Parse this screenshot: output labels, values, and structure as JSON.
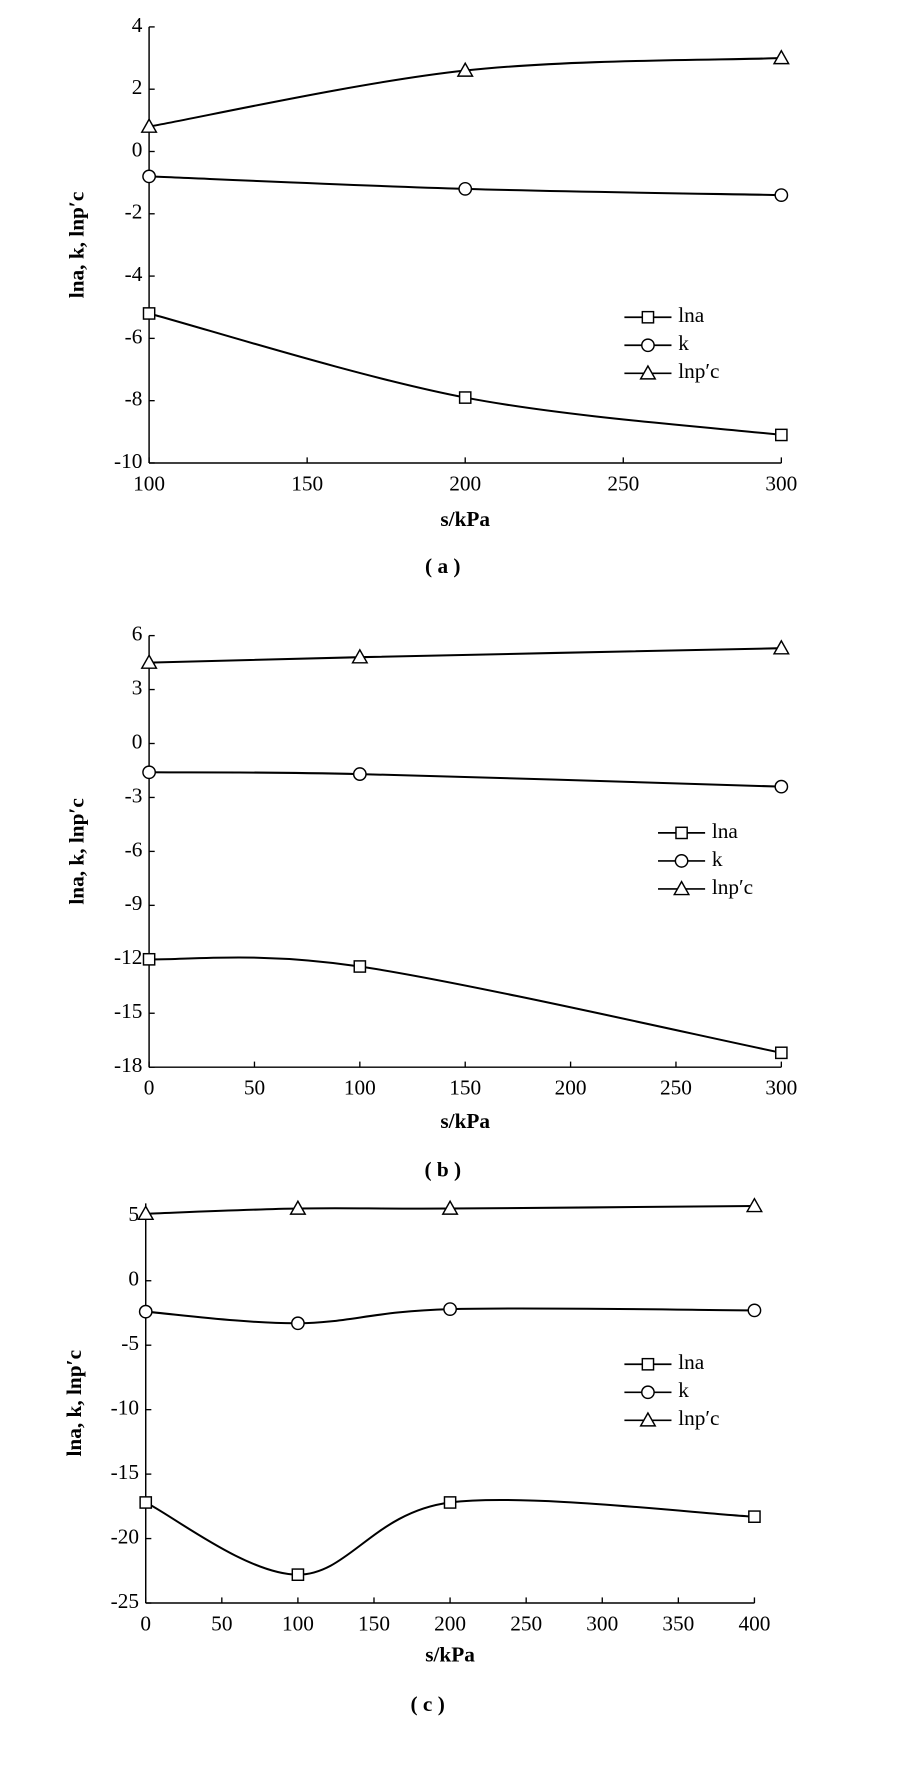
{
  "chart_data": [
    {
      "type": "line",
      "x_label": "s/kPa",
      "y_label": "lna, k, lnp′c",
      "sublabel": "( a )",
      "x": [
        100,
        200,
        300
      ],
      "xlim": [
        100,
        300
      ],
      "xticks": [
        100,
        150,
        200,
        250,
        300
      ],
      "ylim": [
        -10,
        4
      ],
      "yticks": [
        -10,
        -8,
        -6,
        -4,
        -2,
        0,
        2,
        4
      ],
      "smooth": true,
      "series": [
        {
          "name": "lna",
          "color": "#000000",
          "marker": "square",
          "values": [
            -5.2,
            -7.9,
            -9.1
          ]
        },
        {
          "name": "k",
          "color": "#000000",
          "marker": "circle",
          "values": [
            -0.8,
            -1.2,
            -1.4
          ]
        },
        {
          "name": "lnp′c",
          "color": "#000000",
          "marker": "triangle",
          "values": [
            0.8,
            2.6,
            3.0
          ]
        }
      ]
    },
    {
      "type": "line",
      "x_label": "s/kPa",
      "y_label": "lna, k, lnp′c",
      "sublabel": "( b )",
      "x": [
        0,
        100,
        300
      ],
      "xlim": [
        0,
        300
      ],
      "xticks": [
        0,
        50,
        100,
        150,
        200,
        250,
        300
      ],
      "ylim": [
        -18,
        6
      ],
      "yticks": [
        -18,
        -15,
        -12,
        -9,
        -6,
        -3,
        0,
        3,
        6
      ],
      "smooth": true,
      "series": [
        {
          "name": "lna",
          "color": "#000000",
          "marker": "square",
          "values": [
            -12.0,
            -12.4,
            -17.2
          ]
        },
        {
          "name": "k",
          "color": "#000000",
          "marker": "circle",
          "values": [
            -1.6,
            -1.7,
            -2.4
          ]
        },
        {
          "name": "lnp′c",
          "color": "#000000",
          "marker": "triangle",
          "values": [
            4.5,
            4.8,
            5.3
          ]
        }
      ]
    },
    {
      "type": "line",
      "x_label": "s/kPa",
      "y_label": "lna, k, lnp′c",
      "sublabel": "( c )",
      "x": [
        0,
        100,
        200,
        400
      ],
      "xlim": [
        0,
        400
      ],
      "xticks": [
        0,
        50,
        100,
        150,
        200,
        250,
        300,
        350,
        400
      ],
      "ylim": [
        -25,
        6
      ],
      "yticks": [
        -25,
        -20,
        -15,
        -10,
        -5,
        0,
        5
      ],
      "smooth": true,
      "series": [
        {
          "name": "lna",
          "color": "#000000",
          "marker": "square",
          "values": [
            -17.2,
            -22.8,
            -17.2,
            -18.3
          ]
        },
        {
          "name": "k",
          "color": "#000000",
          "marker": "circle",
          "values": [
            -2.4,
            -3.3,
            -2.2,
            -2.3
          ]
        },
        {
          "name": "lnp′c",
          "color": "#000000",
          "marker": "triangle",
          "values": [
            5.2,
            5.6,
            5.6,
            5.8
          ]
        }
      ]
    }
  ]
}
